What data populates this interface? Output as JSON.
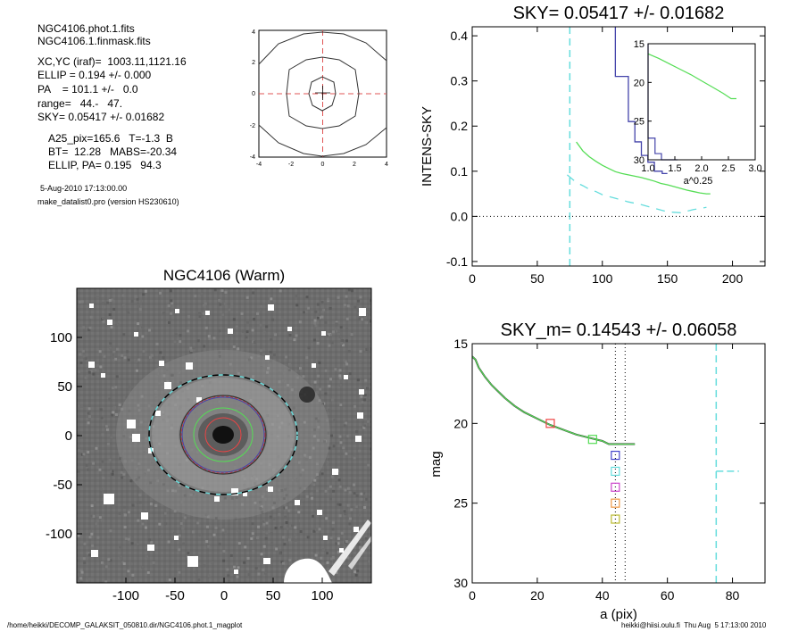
{
  "info": {
    "lines": [
      "NGC4106.phot.1.fits",
      "NGC4106.1.finmask.fits",
      "XC,YC (iraf)=  1003.11,1121.16",
      "ELLIP = 0.194 +/- 0.000",
      "PA    = 101.1 +/-   0.0",
      "range=   44.-   47.",
      "SKY= 0.05417 +/- 0.01682"
    ],
    "params": [
      "A25_pix=165.6   T=-1.3  B",
      "BT=  12.28   MABS=-20.34",
      "ELLIP, PA= 0.195   94.3"
    ],
    "date": "5-Aug-2010 17:13:00.00",
    "program": "make_datalist0.pro (version HS230610)"
  },
  "footer": {
    "left": "/home/heikki/DECOMP_GALAKSIT_050810.dir/NGC4106.phot.1_magplot",
    "right": "heikki@hiisi.oulu.fi  Thu Aug  5 17:13:00 2010"
  },
  "chart_data": [
    {
      "type": "line",
      "panel": "contour",
      "xlim": [
        -4,
        4
      ],
      "ylim": [
        -4,
        4
      ],
      "xticks": [
        "-4",
        "-2",
        "0",
        "2",
        "4"
      ],
      "yticks": [
        "-4",
        "-2",
        "0",
        "2",
        "4"
      ]
    },
    {
      "type": "line",
      "panel": "sky",
      "title": "SKY= 0.05417 +/- 0.01682",
      "xlabel": "",
      "ylabel": "INTENS-SKY",
      "xlim": [
        0,
        225
      ],
      "ylim": [
        -0.11,
        0.42
      ],
      "xticks": [
        "0",
        "50",
        "100",
        "150",
        "200"
      ],
      "yticks": [
        "-0.1",
        "0.0",
        "0.1",
        "0.2",
        "0.3",
        "0.4"
      ],
      "vline_x": 75,
      "series": [
        {
          "color": "#55dd55",
          "x": [
            80,
            85,
            90,
            95,
            100,
            105,
            110,
            115,
            120,
            125,
            130,
            135,
            140,
            145,
            150,
            155,
            160,
            165,
            170,
            175,
            180,
            183
          ],
          "y": [
            0.165,
            0.145,
            0.132,
            0.122,
            0.113,
            0.106,
            0.099,
            0.095,
            0.092,
            0.089,
            0.086,
            0.082,
            0.078,
            0.073,
            0.07,
            0.066,
            0.062,
            0.058,
            0.055,
            0.052,
            0.05,
            0.05
          ]
        },
        {
          "color": "#66dddd",
          "dash": true,
          "x": [
            73,
            80,
            85,
            90,
            95,
            100,
            110,
            120,
            130,
            140,
            150,
            160,
            170,
            180
          ],
          "y": [
            0.092,
            0.075,
            0.068,
            0.06,
            0.055,
            0.048,
            0.04,
            0.032,
            0.026,
            0.018,
            0.01,
            0.008,
            0.015,
            0.02
          ]
        },
        {
          "color": "#4444aa",
          "x": [
            110,
            110,
            120,
            120,
            125,
            125,
            130,
            130,
            135,
            135,
            140,
            140,
            146,
            146,
            150
          ],
          "y": [
            0.42,
            0.31,
            0.31,
            0.21,
            0.21,
            0.165,
            0.165,
            0.135,
            0.135,
            0.12,
            0.12,
            0.1,
            0.1,
            0.095,
            0.095
          ]
        }
      ],
      "inset": {
        "xlabel": "a^0.25",
        "xlim": [
          1.0,
          3.0
        ],
        "ylim": [
          30,
          15
        ],
        "xticks": [
          "1.0",
          "1.5",
          "2.0",
          "2.5",
          "3.0"
        ],
        "yticks": [
          "15",
          "20",
          "25",
          "30"
        ],
        "series": [
          {
            "color": "#55dd55",
            "x": [
              1.0,
              1.2,
              1.4,
              1.6,
              1.8,
              2.0,
              2.2,
              2.4,
              2.55,
              2.65
            ],
            "y": [
              16.3,
              16.9,
              17.6,
              18.3,
              19.0,
              19.8,
              20.6,
              21.4,
              22.1,
              22.1
            ]
          },
          {
            "color": "#4444aa",
            "x": [
              1.0,
              1.0,
              1.13,
              1.13,
              1.25,
              1.25,
              1.45,
              1.45,
              1.55
            ],
            "y": [
              15,
              27.2,
              27.2,
              29.2,
              29.2,
              30.5,
              30.5,
              30.5,
              30.5
            ]
          }
        ]
      }
    },
    {
      "type": "heatmap",
      "panel": "image",
      "title": "NGC4106 (Warm)",
      "xlim": [
        -150,
        150
      ],
      "ylim": [
        -150,
        150
      ],
      "xticks": [
        "-100",
        "-50",
        "0",
        "50",
        "100"
      ],
      "yticks": [
        "-100",
        "-50",
        "0",
        "50",
        "100"
      ]
    },
    {
      "type": "line",
      "panel": "mag",
      "title": "SKY_m=  0.14543 +/- 0.06058",
      "xlabel": "a (pix)",
      "ylabel": "mag",
      "xlim": [
        0,
        90
      ],
      "ylim": [
        30,
        15
      ],
      "xticks": [
        "0",
        "20",
        "40",
        "60",
        "80"
      ],
      "yticks": [
        "15",
        "20",
        "25",
        "30"
      ],
      "vlines_dotted": [
        44,
        47
      ],
      "vline_dashed": 75,
      "series": [
        {
          "color": "#55dd55",
          "x": [
            0,
            1,
            2,
            4,
            6,
            8,
            10,
            13,
            16,
            20,
            24,
            28,
            32,
            36,
            40,
            42,
            44,
            46,
            48,
            50
          ],
          "y": [
            15.8,
            16.0,
            16.5,
            17.1,
            17.6,
            18.0,
            18.4,
            18.9,
            19.3,
            19.7,
            20.1,
            20.4,
            20.7,
            20.9,
            21.1,
            21.3,
            21.3,
            21.3,
            21.3,
            21.3
          ]
        }
      ],
      "markers": [
        {
          "color": "#ee4444",
          "x": 24,
          "y": 20.0
        },
        {
          "color": "#55dd55",
          "x": 37,
          "y": 21.0
        },
        {
          "color": "#4444cc",
          "x": 44,
          "y": 22.0
        },
        {
          "color": "#66dddd",
          "x": 44,
          "y": 23.0
        },
        {
          "color": "#cc44cc",
          "x": 44,
          "y": 24.0
        },
        {
          "color": "#ee9944",
          "x": 44,
          "y": 25.0
        },
        {
          "color": "#bbbb33",
          "x": 44,
          "y": 26.0
        }
      ],
      "sky_marker": {
        "color": "#66dddd",
        "x": [
          75,
          82
        ],
        "y": 23.0
      }
    }
  ]
}
